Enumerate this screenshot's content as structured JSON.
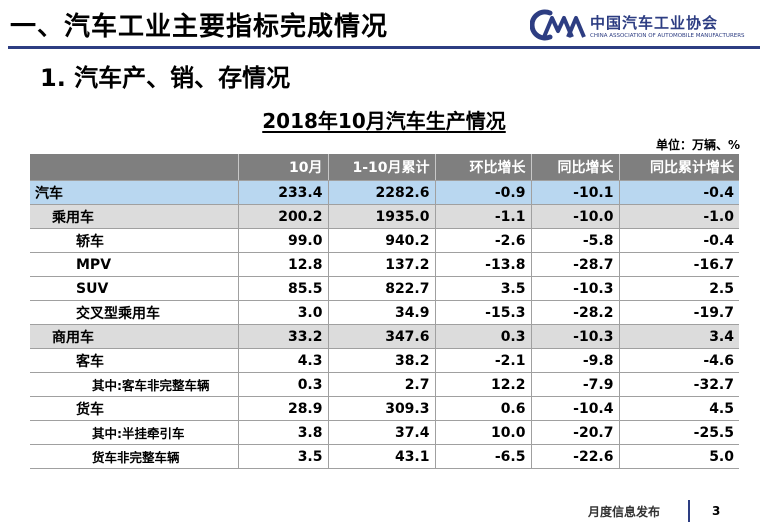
{
  "header": {
    "title": "一、汽车工业主要指标完成情况",
    "logo_cn": "中国汽车工业协会",
    "logo_en": "CHINA ASSOCIATION OF AUTOMOBILE MANUFACTURERS",
    "brand_color": "#2d3d82"
  },
  "section_title": "1. 汽车产、销、存情况",
  "table": {
    "title": "2018年10月汽车生产情况",
    "unit": "单位：万辆、%",
    "columns": [
      "",
      "10月",
      "1-10月累计",
      "环比增长",
      "同比增长",
      "同比累计增长"
    ],
    "rows": [
      {
        "name": "汽车",
        "m": "233.4",
        "ytd": "2282.6",
        "mom": "-0.9",
        "yoy": "-10.1",
        "ytd_yoy": "-0.4"
      },
      {
        "name": "乘用车",
        "m": "200.2",
        "ytd": "1935.0",
        "mom": "-1.1",
        "yoy": "-10.0",
        "ytd_yoy": "-1.0"
      },
      {
        "name": "轿车",
        "m": "99.0",
        "ytd": "940.2",
        "mom": "-2.6",
        "yoy": "-5.8",
        "ytd_yoy": "-0.4"
      },
      {
        "name": "MPV",
        "m": "12.8",
        "ytd": "137.2",
        "mom": "-13.8",
        "yoy": "-28.7",
        "ytd_yoy": "-16.7"
      },
      {
        "name": "SUV",
        "m": "85.5",
        "ytd": "822.7",
        "mom": "3.5",
        "yoy": "-10.3",
        "ytd_yoy": "2.5"
      },
      {
        "name": "交叉型乘用车",
        "m": "3.0",
        "ytd": "34.9",
        "mom": "-15.3",
        "yoy": "-28.2",
        "ytd_yoy": "-19.7"
      },
      {
        "name": "商用车",
        "m": "33.2",
        "ytd": "347.6",
        "mom": "0.3",
        "yoy": "-10.3",
        "ytd_yoy": "3.4"
      },
      {
        "name": "客车",
        "m": "4.3",
        "ytd": "38.2",
        "mom": "-2.1",
        "yoy": "-9.8",
        "ytd_yoy": "-4.6"
      },
      {
        "name": "其中:客车非完整车辆",
        "m": "0.3",
        "ytd": "2.7",
        "mom": "12.2",
        "yoy": "-7.9",
        "ytd_yoy": "-32.7"
      },
      {
        "name": "货车",
        "m": "28.9",
        "ytd": "309.3",
        "mom": "0.6",
        "yoy": "-10.4",
        "ytd_yoy": "4.5"
      },
      {
        "name": "其中:半挂牵引车",
        "m": "3.8",
        "ytd": "37.4",
        "mom": "10.0",
        "yoy": "-20.7",
        "ytd_yoy": "-25.5"
      },
      {
        "name": "货车非完整车辆",
        "m": "3.5",
        "ytd": "43.1",
        "mom": "-6.5",
        "yoy": "-22.6",
        "ytd_yoy": "5.0"
      }
    ]
  },
  "footer": {
    "text": "月度信息发布",
    "page": "3"
  }
}
